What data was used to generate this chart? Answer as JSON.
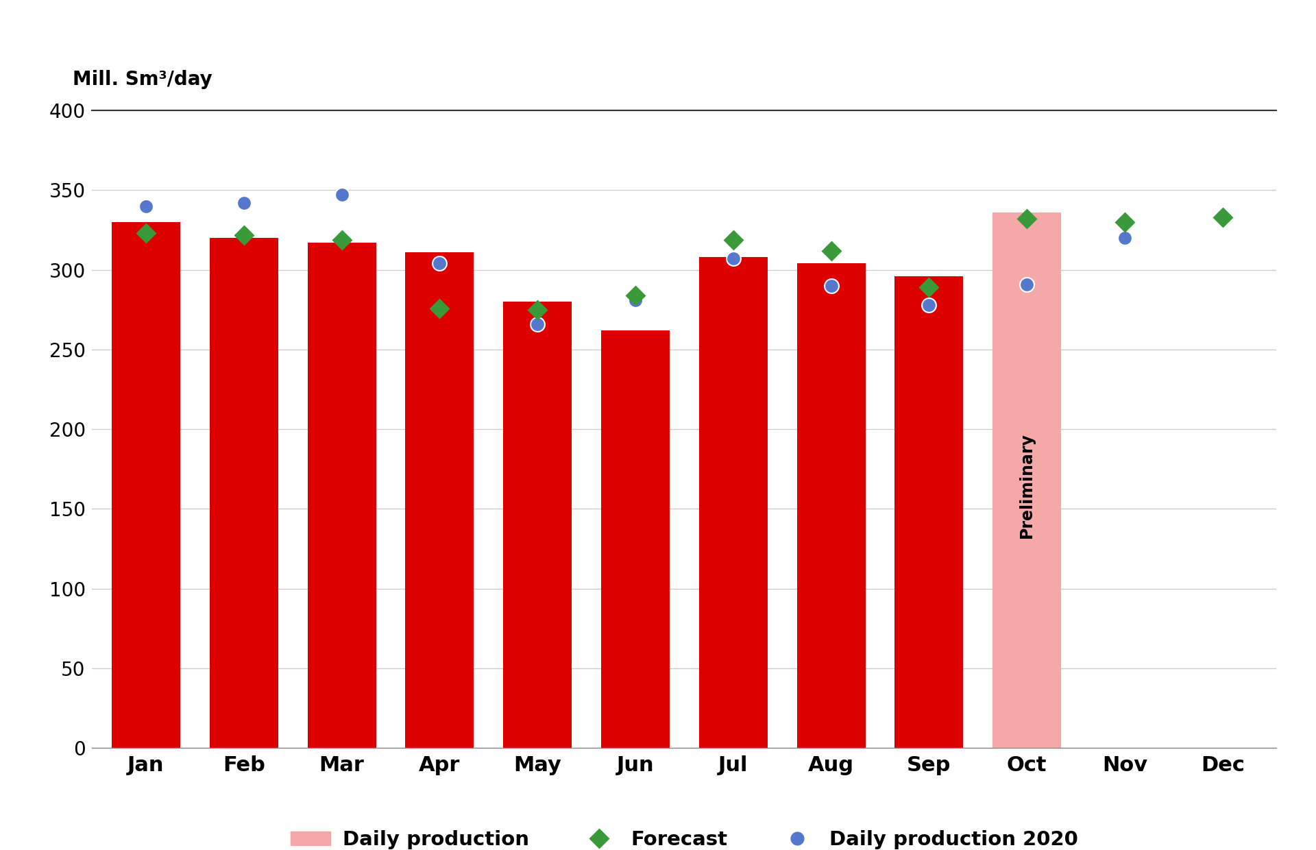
{
  "months": [
    "Jan",
    "Feb",
    "Mar",
    "Apr",
    "May",
    "Jun",
    "Jul",
    "Aug",
    "Sep",
    "Oct",
    "Nov",
    "Dec"
  ],
  "bar_values": [
    330,
    320,
    317,
    311,
    280,
    262,
    308,
    304,
    296,
    336,
    null,
    null
  ],
  "bar_color_preliminary": "#f5a8a8",
  "preliminary_month_index": 9,
  "forecast": [
    323,
    322,
    319,
    276,
    275,
    284,
    319,
    312,
    289,
    332,
    330,
    333
  ],
  "production_2020": [
    340,
    342,
    347,
    304,
    266,
    281,
    307,
    290,
    278,
    291,
    320,
    333
  ],
  "ylabel": "Mill. Sm³/day",
  "ylim": [
    0,
    400
  ],
  "yticks": [
    0,
    50,
    100,
    150,
    200,
    250,
    300,
    350,
    400
  ],
  "forecast_color": "#3a9a3a",
  "production2020_color": "#5577cc",
  "bar_color_solid": "#DD0000",
  "legend_labels": [
    "Daily production",
    "Forecast",
    "Daily production 2020"
  ],
  "grid_color": "#cccccc",
  "background_color": "#ffffff"
}
